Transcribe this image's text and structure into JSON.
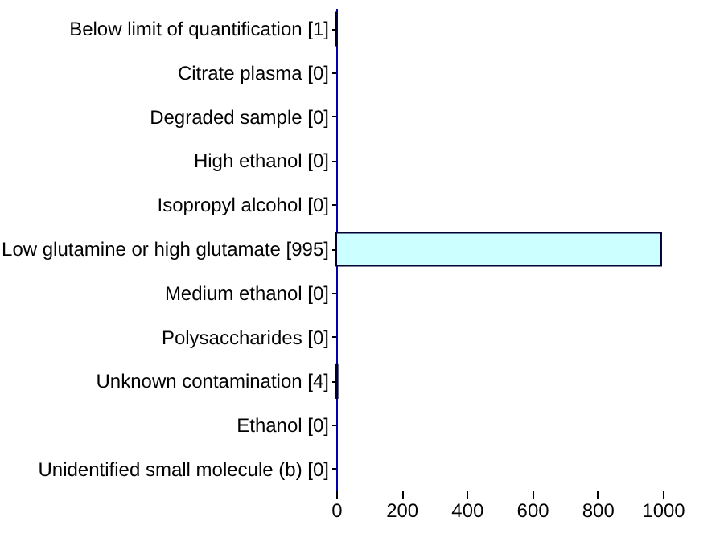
{
  "chart_data": {
    "type": "bar",
    "orientation": "horizontal",
    "categories": [
      "Below limit of quantification [1]",
      "Citrate plasma [0]",
      "Degraded sample [0]",
      "High ethanol [0]",
      "Isopropyl alcohol [0]",
      "Low glutamine or high glutamate [995]",
      "Medium ethanol [0]",
      "Polysaccharides [0]",
      "Unknown contamination [4]",
      "Ethanol [0]",
      "Unidentified small molecule (b) [0]"
    ],
    "values": [
      1,
      0,
      0,
      0,
      0,
      995,
      0,
      0,
      4,
      0,
      0
    ],
    "color": "#ccffff",
    "xlim": [
      0,
      1000
    ],
    "xticks": [
      0,
      200,
      400,
      600,
      800,
      1000
    ]
  }
}
